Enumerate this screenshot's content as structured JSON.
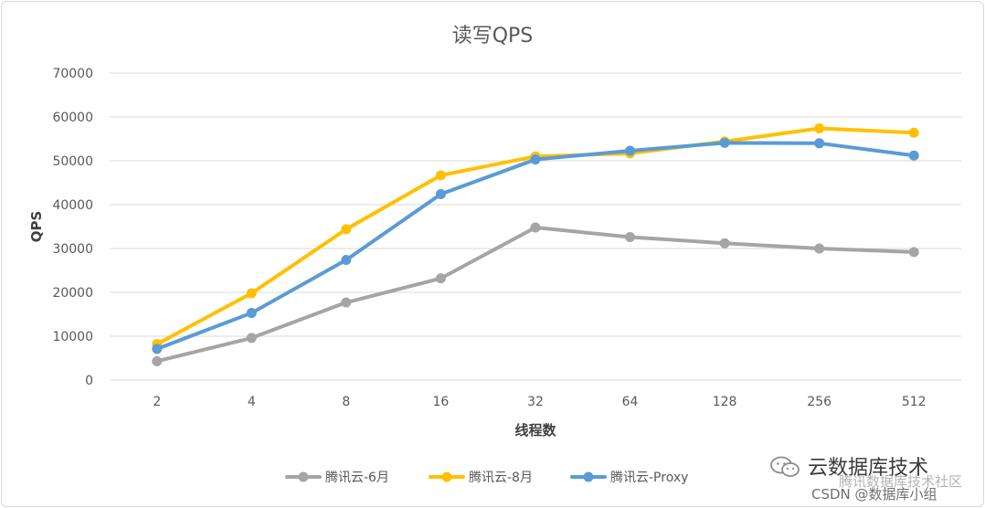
{
  "chart_data": {
    "type": "line",
    "title": "读写QPS",
    "xlabel": "线程数",
    "ylabel": "QPS",
    "categories": [
      "2",
      "4",
      "8",
      "16",
      "32",
      "64",
      "128",
      "256",
      "512"
    ],
    "ylim": [
      0,
      70000
    ],
    "yticks": [
      0,
      10000,
      20000,
      30000,
      40000,
      50000,
      60000,
      70000
    ],
    "ytick_labels": [
      "0",
      "10000",
      "20000",
      "30000",
      "40000",
      "50000",
      "60000",
      "70000"
    ],
    "grid": true,
    "legend": "bottom",
    "series": [
      {
        "name": "腾讯云-6月",
        "color": "#a5a5a5",
        "values": [
          4300,
          9600,
          17700,
          23200,
          34800,
          32600,
          31200,
          30000,
          29200
        ]
      },
      {
        "name": "腾讯云-8月",
        "color": "#ffc000",
        "values": [
          8200,
          19800,
          34400,
          46700,
          51000,
          51700,
          54400,
          57400,
          56400
        ]
      },
      {
        "name": "腾讯云-Proxy",
        "color": "#5b9bd5",
        "values": [
          7100,
          15300,
          27400,
          42400,
          50300,
          52300,
          54100,
          54000,
          51200
        ]
      }
    ]
  },
  "watermark": {
    "brand": "云数据库技术",
    "line2": "腾讯数据库技术社区",
    "line3": "CSDN @数据库小组",
    "icon": "wechat-icon"
  }
}
